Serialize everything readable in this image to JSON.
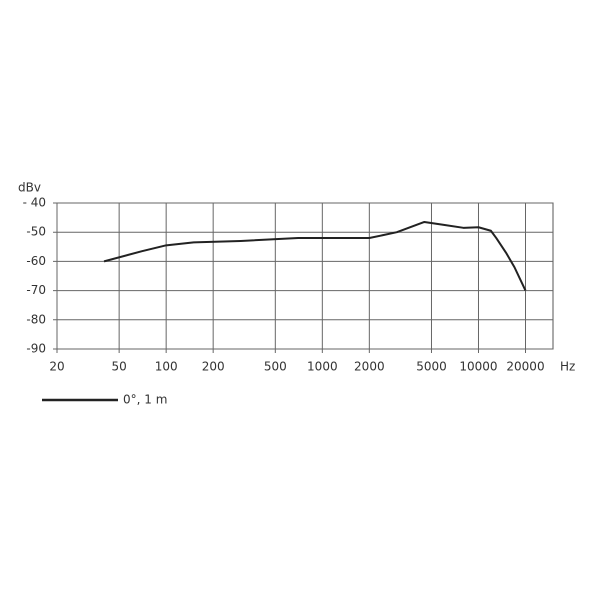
{
  "chart_data": {
    "type": "line",
    "y_unit": "dBv",
    "x_unit": "Hz",
    "log_x": true,
    "grid": true,
    "x": [
      40,
      70,
      100,
      150,
      300,
      700,
      1000,
      2000,
      3000,
      4500,
      6000,
      8000,
      10000,
      12000,
      13000,
      15000,
      17000,
      20000
    ],
    "series": [
      {
        "name": "0°, 1 m",
        "color": "#222222",
        "values": [
          -60,
          -56.5,
          -54.5,
          -53.5,
          -53,
          -52,
          -52,
          -52,
          -50,
          -46.5,
          -47.5,
          -48.5,
          -48.3,
          -49.5,
          -52,
          -57,
          -62,
          -70
        ]
      }
    ],
    "xlim": [
      20,
      30000
    ],
    "xticks": [
      20,
      50,
      100,
      200,
      500,
      1000,
      2000,
      5000,
      10000,
      20000
    ],
    "ylim": [
      -90,
      -40
    ],
    "yticks": [
      {
        "value": -40,
        "label": "- 40"
      },
      -50,
      -60,
      -70,
      -80,
      -90
    ]
  }
}
